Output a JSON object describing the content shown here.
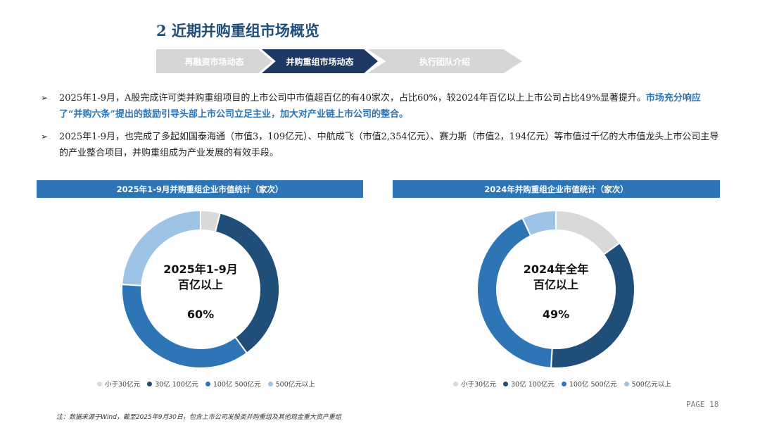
{
  "title": "2 近期并购重组市场概览",
  "nav": {
    "steps": [
      "再融资市场动态",
      "并购重组市场动态",
      "执行团队介绍"
    ]
  },
  "bullets": [
    {
      "text": "2025年1-9月，A股完成许可类并购重组项目的上市公司中市值超百亿的有40家次，占比60%，较2024年百亿以上上市公司占比49%显著提升。",
      "highlight": "市场充分响应了“并购六条”提出的鼓励引导头部上市公司立足主业，加大对产业链上市公司的整合。"
    },
    {
      "text": "2025年1-9月，也完成了多起如国泰海通（市值3，109亿元）、中航成飞（市值2,354亿元）、赛力斯（市值2，194亿元）等市值过千亿的大市值龙头上市公司主导的产业整合项目，并购重组成为产业发展的有效手段。"
    }
  ],
  "charts": [
    {
      "header": "2025年1-9月并购重组企业市值统计（家次）",
      "center_line1": "2025年1-9月",
      "center_line2": "百亿以上",
      "center_pct": "60%"
    },
    {
      "header": "2024年并购重组企业市值统计（家次）",
      "center_line1": "2024年全年",
      "center_line2": "百亿以上",
      "center_pct": "49%"
    }
  ],
  "legend": [
    "小于30亿元",
    "30亿 100亿元",
    "100亿 500亿元",
    "500亿元以上"
  ],
  "colors": {
    "lt30": "#d9d9d9",
    "b30_100": "#1f4e79",
    "b100_500": "#2e75b6",
    "gt500": "#9dc3e6"
  },
  "chart_data": [
    {
      "type": "pie",
      "categories": [
        "小于30亿元",
        "30亿 100亿元",
        "100亿 500亿元",
        "500亿元以上"
      ],
      "values": [
        4,
        36,
        36,
        24
      ]
    },
    {
      "type": "pie",
      "categories": [
        "小于30亿元",
        "30亿 100亿元",
        "100亿 500亿元",
        "500亿元以上"
      ],
      "values": [
        15,
        36,
        42,
        7
      ]
    }
  ],
  "footnote": "注：数据来源于Wind，截至2025年9月30日，包含上市公司发股类并购重组及其他现金重大资产重组",
  "page": "PAGE 18"
}
